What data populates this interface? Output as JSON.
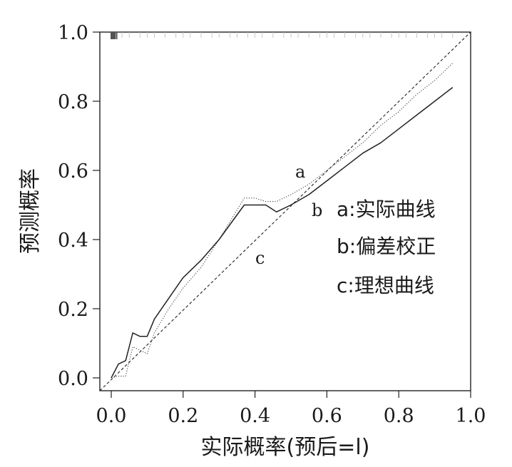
{
  "chart_data": {
    "type": "line",
    "title": "",
    "xlabel": "实际概率(预后=l)",
    "ylabel": "预测概率",
    "xlim": [
      0.0,
      1.0
    ],
    "ylim": [
      0.0,
      1.0
    ],
    "xticks": [
      "0.0",
      "0.2",
      "0.4",
      "0.6",
      "0.8",
      "1.0"
    ],
    "yticks": [
      "0.0",
      "0.2",
      "0.4",
      "0.6",
      "0.8",
      "1.0"
    ],
    "grid": false,
    "legend_position": "right",
    "legend": [
      "a:实际曲线",
      "b:偏差校正",
      "c:理想曲线"
    ],
    "annotations": [
      "a",
      "b",
      "c"
    ],
    "series": [
      {
        "key": "a",
        "style": "dotted",
        "x": [
          0.0,
          0.02,
          0.04,
          0.06,
          0.08,
          0.1,
          0.12,
          0.16,
          0.2,
          0.25,
          0.3,
          0.37,
          0.4,
          0.43,
          0.46,
          0.5,
          0.55,
          0.6,
          0.65,
          0.7,
          0.75,
          0.8,
          0.85,
          0.9,
          0.95
        ],
        "y": [
          0.0,
          0.005,
          0.005,
          0.09,
          0.08,
          0.07,
          0.13,
          0.2,
          0.26,
          0.32,
          0.4,
          0.52,
          0.52,
          0.51,
          0.51,
          0.53,
          0.56,
          0.6,
          0.64,
          0.68,
          0.73,
          0.77,
          0.82,
          0.86,
          0.91
        ]
      },
      {
        "key": "b",
        "style": "solid",
        "x": [
          0.0,
          0.02,
          0.04,
          0.06,
          0.08,
          0.1,
          0.12,
          0.16,
          0.2,
          0.25,
          0.3,
          0.37,
          0.4,
          0.43,
          0.46,
          0.5,
          0.55,
          0.6,
          0.65,
          0.7,
          0.75,
          0.8,
          0.85,
          0.9,
          0.95
        ],
        "y": [
          0.0,
          0.04,
          0.05,
          0.13,
          0.12,
          0.12,
          0.17,
          0.23,
          0.29,
          0.34,
          0.4,
          0.5,
          0.5,
          0.5,
          0.48,
          0.5,
          0.53,
          0.57,
          0.61,
          0.65,
          0.68,
          0.72,
          0.76,
          0.8,
          0.84
        ]
      },
      {
        "key": "c",
        "style": "dashed",
        "x": [
          -0.05,
          1.0
        ],
        "y": [
          -0.05,
          1.0
        ]
      }
    ],
    "rug_x": [
      0.0,
      0.002,
      0.004,
      0.006,
      0.008,
      0.01,
      0.015,
      0.03,
      0.05,
      0.08,
      0.1,
      0.12,
      0.15,
      0.18,
      0.2,
      0.22,
      0.25,
      0.28,
      0.3,
      0.33,
      0.35,
      0.38,
      0.4,
      0.42,
      0.45,
      0.48,
      0.5,
      0.52,
      0.55,
      0.58,
      0.6,
      0.62,
      0.65,
      0.68,
      0.7,
      0.72,
      0.75,
      0.78,
      0.8,
      0.82,
      0.85,
      0.88,
      0.9,
      0.92,
      0.95
    ]
  }
}
